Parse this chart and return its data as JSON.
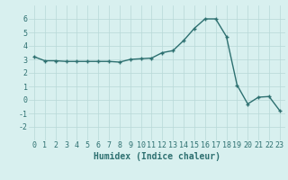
{
  "x": [
    0,
    1,
    2,
    3,
    4,
    5,
    6,
    7,
    8,
    9,
    10,
    11,
    12,
    13,
    14,
    15,
    16,
    17,
    18,
    19,
    20,
    21,
    22,
    23
  ],
  "y": [
    3.2,
    2.9,
    2.9,
    2.85,
    2.85,
    2.85,
    2.85,
    2.85,
    2.8,
    3.0,
    3.05,
    3.1,
    3.5,
    3.65,
    4.4,
    5.3,
    6.0,
    6.0,
    4.7,
    1.1,
    -0.3,
    0.2,
    0.25,
    -0.8
  ],
  "line_color": "#2d7070",
  "marker": "+",
  "markersize": 3,
  "linewidth": 1.0,
  "bg_color": "#d8f0ef",
  "grid_color": "#b8d8d8",
  "xlabel": "Humidex (Indice chaleur)",
  "xlabel_fontsize": 7,
  "tick_fontsize": 6,
  "xlim": [
    -0.5,
    23.5
  ],
  "ylim": [
    -3,
    7
  ],
  "yticks": [
    -2,
    -1,
    0,
    1,
    2,
    3,
    4,
    5,
    6
  ],
  "xticks": [
    0,
    1,
    2,
    3,
    4,
    5,
    6,
    7,
    8,
    9,
    10,
    11,
    12,
    13,
    14,
    15,
    16,
    17,
    18,
    19,
    20,
    21,
    22,
    23
  ]
}
